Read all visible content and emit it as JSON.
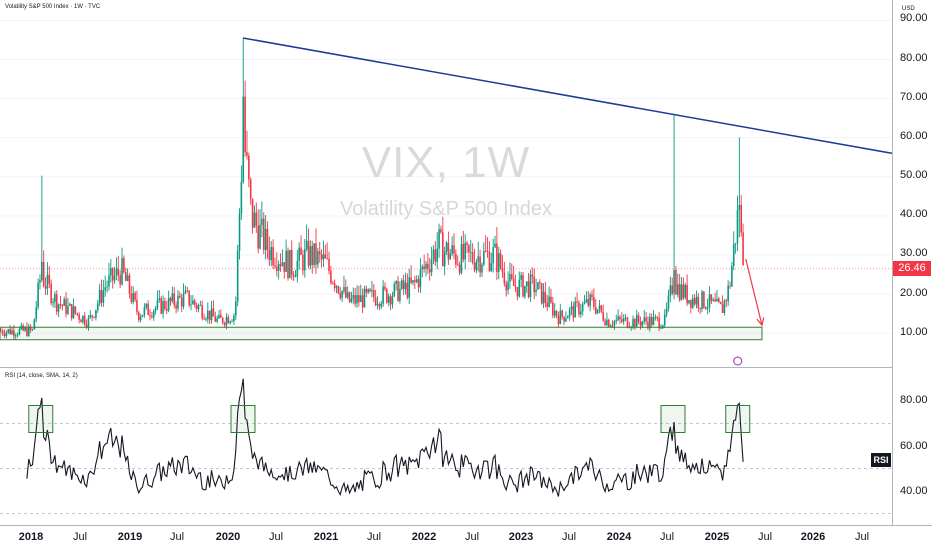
{
  "header": {
    "symbol_line": "Volatility S&P 500 Index · 1W · TVC",
    "rsi_line": "RSI (14, close, SMA, 14, 2)"
  },
  "watermark": {
    "ticker": "VIX, 1W",
    "name": "Volatility S&P 500 Index"
  },
  "price_axis": {
    "unit": "USD",
    "ticks": [
      "90.00",
      "80.00",
      "70.00",
      "60.00",
      "50.00",
      "40.00",
      "30.00",
      "20.00",
      "10.00"
    ],
    "last_price": "26.46"
  },
  "rsi_axis": {
    "ticks": [
      "80.00",
      "60.00",
      "40.00"
    ],
    "badge": "RSI"
  },
  "time_axis": {
    "ticks": [
      "2018",
      "Jul",
      "2019",
      "Jul",
      "2020",
      "Jul",
      "2021",
      "Jul",
      "2022",
      "Jul",
      "2023",
      "Jul",
      "2024",
      "Jul",
      "2025",
      "Jul",
      "2026",
      "Jul"
    ]
  },
  "colors": {
    "up": "#089981",
    "down": "#f23645",
    "trendline": "#1c3d94",
    "box": "#2e7d32",
    "rsi": "#131722"
  },
  "chart_data": [
    {
      "type": "candlestick",
      "ylim": [
        5,
        93
      ],
      "x_range": [
        "2017-09",
        "2026-11"
      ],
      "key_points": [
        {
          "date": "2018-02",
          "high": 50.3,
          "close": 19.9
        },
        {
          "date": "2020-03",
          "high": 85.5,
          "close": 66.0
        },
        {
          "date": "2022-03",
          "high": 38.0,
          "close": 30.0
        },
        {
          "date": "2024-08",
          "high": 65.7,
          "close": 23.4
        },
        {
          "date": "2025-04",
          "high": 60.1,
          "close": 26.46
        }
      ],
      "trendline": {
        "from": {
          "date": "2020-03",
          "value": 85.5
        },
        "to": {
          "date": "2026-11",
          "value": 56.0
        }
      },
      "support_zone": {
        "from": "2017-09",
        "to": "2025-07",
        "low": 8.3,
        "high": 11.5
      },
      "projection_arrow": {
        "from": {
          "date": "2025-05",
          "value": 29.0
        },
        "to": {
          "date": "2025-07",
          "value": 12.0
        }
      }
    },
    {
      "type": "line",
      "title": "RSI (14, close, SMA, 14, 2)",
      "ylim": [
        25,
        95
      ],
      "levels": [
        70,
        50,
        30
      ],
      "highlight_boxes": [
        "2018-02",
        "2020-03",
        "2024-08",
        "2025-04"
      ]
    }
  ]
}
